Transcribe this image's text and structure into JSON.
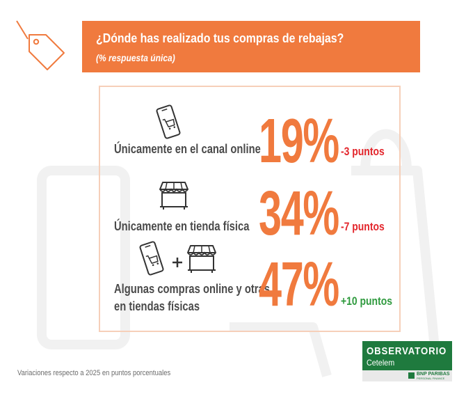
{
  "header": {
    "title": "¿Dónde has realizado tus compras de rebajas?",
    "subtitle": "(% respuesta única)"
  },
  "chart_data": {
    "type": "table",
    "rows": [
      {
        "label": "Únicamente en el canal online",
        "value": "19%",
        "delta": "-3 puntos",
        "icon": "smartphone-cart-icon"
      },
      {
        "label": "Únicamente en tienda física",
        "value": "34%",
        "delta": "-7 puntos",
        "icon": "storefront-icon"
      },
      {
        "label_lines": [
          "Algunas compras online y otras",
          "en tiendas físicas"
        ],
        "value": "47%",
        "delta": "+10 puntos",
        "icon": "smartphone-plus-store-icon"
      }
    ]
  },
  "footnote": "Variaciones respecto a 2025 en puntos porcentuales",
  "logo": {
    "name": "OBSERVATORIO",
    "sub": "Cetelem",
    "partner": "BNP PARIBAS",
    "partner_sub": "PERSONAL FINANCE"
  },
  "colors": {
    "accent": "#f07a3e",
    "negative": "#e3262c",
    "positive": "#2f9a3e",
    "brand_green": "#1f7a3e"
  }
}
